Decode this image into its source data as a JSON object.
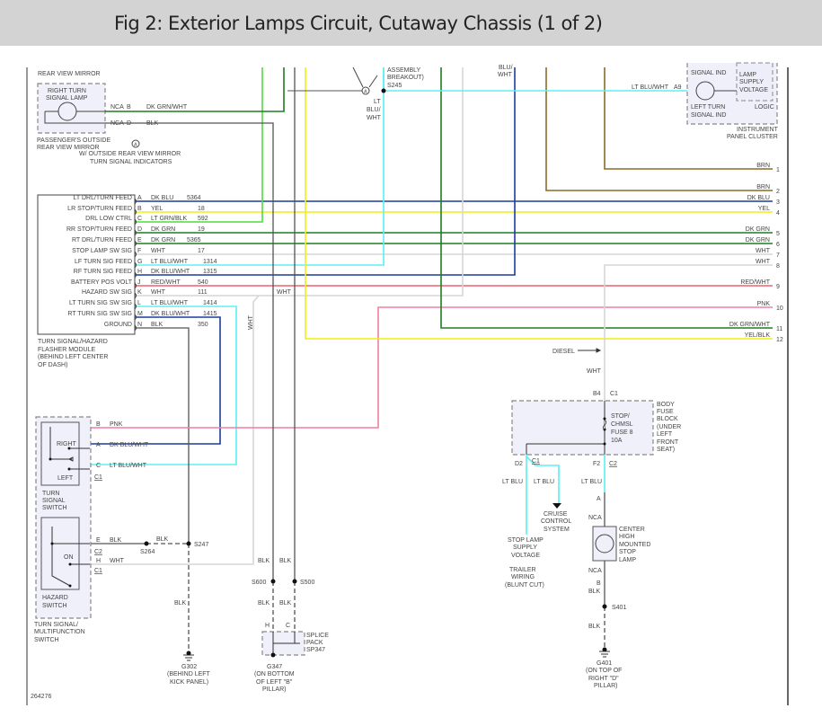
{
  "title": "Fig 2: Exterior Lamps Circuit, Cutaway Chassis (1 of 2)",
  "figure_id": "264276",
  "colors": {
    "dk_blu": "#1c3c9c",
    "yel": "#f2ee10",
    "lt_grn": "#4fdc3c",
    "dk_grn": "#1f7d22",
    "wht": "#d6d6d6",
    "lt_blu": "#5cf0f0",
    "red": "#f0606e",
    "pnk": "#f27fa0",
    "blk": "#555555",
    "brn": "#8c6a26"
  },
  "mirror": {
    "section_label": "REAR VIEW MIRROR",
    "lamp_line1": "RIGHT TURN",
    "lamp_line2": "SIGNAL LAMP",
    "nca_b": "NCA",
    "pin_b": "B",
    "wire_b": "DK GRN/WHT",
    "nca_d": "NCA",
    "pin_d": "D",
    "wire_d": "BLK",
    "caption_line1": "PASSENGER'S OUTSIDE",
    "caption_line2": "REAR VIEW MIRROR",
    "note_marker": "A",
    "note_line1": "W/ OUTSIDE REAR VIEW MIRROR",
    "note_line2": "TURN SIGNAL INDICATORS"
  },
  "breakout": {
    "line1": "ASSEMBLY",
    "line2": "BREAKOUT)",
    "splice": "S245",
    "marker": "A",
    "wire_line1": "LT",
    "wire_line2": "BLU/",
    "wire_line3": "WHT"
  },
  "top_wire_label": {
    "line1": "BLU/",
    "line2": "WHT"
  },
  "cluster": {
    "signal_ind_top": "SIGNAL IND",
    "lamp_supply_line1": "LAMP",
    "lamp_supply_line2": "SUPPLY",
    "lamp_supply_line3": "VOLTAGE",
    "logic": "LOGIC",
    "left_turn_line1": "LEFT TURN",
    "left_turn_line2": "SIGNAL IND",
    "name_line1": "INSTRUMENT",
    "name_line2": "PANEL CLUSTER",
    "wire": "LT BLU/WHT",
    "pin": "A9"
  },
  "flasher": {
    "pins": [
      {
        "pin": "A",
        "func": "LT DRL/TURN FEED",
        "wire": "DK BLU",
        "circuit": "5364",
        "color": "dk_blu"
      },
      {
        "pin": "B",
        "func": "LR STOP/TURN FEED",
        "wire": "YEL",
        "circuit": "18",
        "color": "yel"
      },
      {
        "pin": "C",
        "func": "DRL LOW CTRL",
        "wire": "LT GRN/BLK",
        "circuit": "592",
        "color": "lt_grn"
      },
      {
        "pin": "D",
        "func": "RR STOP/TURN FEED",
        "wire": "DK GRN",
        "circuit": "19",
        "color": "dk_grn"
      },
      {
        "pin": "E",
        "func": "RT DRL/TURN FEED",
        "wire": "DK GRN",
        "circuit": "5365",
        "color": "dk_grn"
      },
      {
        "pin": "F",
        "func": "STOP LAMP SW SIG",
        "wire": "WHT",
        "circuit": "17",
        "color": "wht"
      },
      {
        "pin": "G",
        "func": "LF TURN SIG FEED",
        "wire": "LT BLU/WHT",
        "circuit": "1314",
        "color": "lt_blu"
      },
      {
        "pin": "H",
        "func": "RF TURN SIG FEED",
        "wire": "DK BLU/WHT",
        "circuit": "1315",
        "color": "dk_blu"
      },
      {
        "pin": "J",
        "func": "BATTERY POS VOLT",
        "wire": "RED/WHT",
        "circuit": "540",
        "color": "red"
      },
      {
        "pin": "K",
        "func": "HAZARD SW SIG",
        "wire": "WHT",
        "circuit": "111",
        "color": "wht"
      },
      {
        "pin": "L",
        "func": "LT TURN SIG SW SIG",
        "wire": "LT BLU/WHT",
        "circuit": "1414",
        "color": "lt_blu"
      },
      {
        "pin": "M",
        "func": "RT TURN SIG SW SIG",
        "wire": "DK BLU/WHT",
        "circuit": "1415",
        "color": "dk_blu"
      },
      {
        "pin": "N",
        "func": "GROUND",
        "wire": "BLK",
        "circuit": "350",
        "color": "blk"
      }
    ],
    "caption_line1": "TURN SIGNAL/HAZARD",
    "caption_line2": "FLASHER MODULE",
    "caption_line3": "(BEHIND LEFT CENTER",
    "caption_line4": "OF DASH)",
    "wht_label_h": "WHT",
    "wht_label_v": "WHT"
  },
  "right_wires": [
    {
      "label": "BRN",
      "num": "1",
      "color": "brn"
    },
    {
      "label": "BRN",
      "num": "2",
      "color": "brn"
    },
    {
      "label": "DK BLU",
      "num": "3",
      "color": "dk_blu"
    },
    {
      "label": "YEL",
      "num": "4",
      "color": "yel"
    },
    {
      "label": "DK GRN",
      "num": "5",
      "color": "dk_grn"
    },
    {
      "label": "DK GRN",
      "num": "6",
      "color": "dk_grn"
    },
    {
      "label": "WHT",
      "num": "7",
      "color": "wht"
    },
    {
      "label": "WHT",
      "num": "8",
      "color": "wht"
    },
    {
      "label": "RED/WHT",
      "num": "9",
      "color": "red"
    },
    {
      "label": "PNK",
      "num": "10",
      "color": "pnk"
    },
    {
      "label": "DK GRN/WHT",
      "num": "11",
      "color": "dk_grn"
    },
    {
      "label": "YEL/BLK",
      "num": "12",
      "color": "yel"
    }
  ],
  "switch": {
    "pin_b": "B",
    "wire_b": "PNK",
    "pin_a": "A",
    "wire_a": "DK BLU/WHT",
    "pin_c": "C",
    "wire_c": "LT BLU/WHT",
    "conn_c1": "C1",
    "right": "RIGHT",
    "left": "LEFT",
    "turn_line1": "TURN",
    "turn_line2": "SIGNAL",
    "turn_line3": "SWITCH",
    "pin_e": "E",
    "wire_e": "BLK",
    "conn_c2": "C2",
    "pin_h": "H",
    "wire_h": "WHT",
    "conn_c1b": "C1",
    "on": "ON",
    "hazard_line1": "HAZARD",
    "hazard_line2": "SWITCH",
    "caption_line1": "TURN SIGNAL/",
    "caption_line2": "MULTIFUNCTION",
    "caption_line3": "SWITCH"
  },
  "grounds": {
    "s264": "S264",
    "blk_s264": "BLK",
    "s247": "S247",
    "blk_g302": "BLK",
    "g302": "G302",
    "g302_line1": "(BEHIND LEFT",
    "g302_line2": "KICK PANEL)",
    "blk_s600_top": "BLK",
    "blk_s500_top": "BLK",
    "s600": "S600",
    "s500": "S500",
    "blk_s600_bot": "BLK",
    "blk_s500_bot": "BLK",
    "pin_h": "H",
    "pin_c": "C",
    "splice_line1": "SPLICE",
    "splice_line2": "PACK",
    "splice_line3": "SP347",
    "g347": "G347",
    "g347_line1": "(ON BOTTOM",
    "g347_line2": "OF LEFT \"B\"",
    "g347_line3": "PILLAR)"
  },
  "fuse_block": {
    "diesel": "DIESEL",
    "wht": "WHT",
    "pin_b4": "B4",
    "conn_c1": "C1",
    "fuse_line1": "STOP/",
    "fuse_line2": "CHMSL",
    "fuse_line3": "FUSE 8",
    "fuse_line4": "10A",
    "name_line1": "BODY",
    "name_line2": "FUSE",
    "name_line3": "BLOCK",
    "name_line4": "(UNDER",
    "name_line5": "LEFT",
    "name_line6": "FRONT",
    "name_line7": "SEAT)",
    "pin_d2": "D2",
    "conn_c1b": "C1",
    "pin_f2": "F2",
    "conn_c2": "C2",
    "lt_blu_1": "LT BLU",
    "lt_blu_2": "LT BLU",
    "lt_blu_3": "LT BLU",
    "cruise_line1": "CRUISE",
    "cruise_line2": "CONTROL",
    "cruise_line3": "SYSTEM",
    "stop_line1": "STOP LAMP",
    "stop_line2": "SUPPLY",
    "stop_line3": "VOLTAGE",
    "trailer_line1": "TRAILER",
    "trailer_line2": "WIRING",
    "trailer_line3": "(BLUNT CUT)"
  },
  "chmsl": {
    "pin_a": "A",
    "nca_top": "NCA",
    "name_line1": "CENTER",
    "name_line2": "HIGH",
    "name_line3": "MOUNTED",
    "name_line4": "STOP",
    "name_line5": "LAMP",
    "nca_bot": "NCA",
    "pin_b": "B",
    "blk_1": "BLK",
    "s401": "S401",
    "blk_2": "BLK",
    "g401": "G401",
    "g401_line1": "(ON TOP OF",
    "g401_line2": "RIGHT \"D\"",
    "g401_line3": "PILLAR)"
  }
}
